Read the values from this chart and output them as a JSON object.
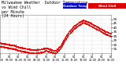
{
  "title_line1": "Milwaukee Weather  Outdoor Temperature",
  "title_line2": "vs Wind Chill",
  "title_line3": "per Minute",
  "title_line4": "(24 Hours)",
  "title_fontsize": 3.5,
  "background_color": "#ffffff",
  "plot_bg_color": "#ffffff",
  "legend_outdoor_color": "#0000cc",
  "legend_windchill_color": "#dd0000",
  "outdoor_label": "Outdoor Temp",
  "windchill_label": "Wind Chill",
  "ymin": 10,
  "ymax": 55,
  "yticks": [
    15,
    20,
    25,
    30,
    35,
    40,
    45,
    50
  ],
  "ytick_fontsize": 3.0,
  "xtick_fontsize": 2.5,
  "dot_size": 0.4,
  "dot_color": "#ff0000",
  "grid_color": "#dddddd",
  "vline_color": "#aaaaaa",
  "vline_style": ":",
  "vline_positions": [
    360,
    600
  ],
  "x_values": [
    0,
    60,
    120,
    180,
    240,
    300,
    360,
    420,
    480,
    540,
    600,
    660,
    720,
    780,
    840,
    900,
    960,
    1020,
    1080,
    1140,
    1200,
    1260,
    1320,
    1380,
    1439
  ],
  "y_outdoor": [
    22,
    21,
    20,
    19,
    17,
    16,
    15,
    14,
    14,
    15,
    16,
    14,
    13,
    18,
    28,
    36,
    42,
    46,
    49,
    47,
    44,
    41,
    38,
    35,
    33
  ],
  "y_windchill": [
    18,
    17,
    16,
    15,
    13,
    12,
    11,
    10,
    10,
    11,
    13,
    11,
    10,
    15,
    25,
    33,
    39,
    43,
    46,
    44,
    41,
    38,
    35,
    32,
    30
  ],
  "xtick_positions": [
    0,
    120,
    240,
    360,
    480,
    600,
    720,
    840,
    960,
    1080,
    1200,
    1320,
    1439
  ],
  "xtick_labels": [
    "01\n01:00",
    "01\n03:00",
    "01\n05:00",
    "01\n07:00",
    "01\n09:00",
    "01\n11:00",
    "01\n13:00",
    "01\n15:00",
    "01\n17:00",
    "01\n19:00",
    "01\n21:00",
    "01\n23:00",
    "02\n01:00"
  ]
}
